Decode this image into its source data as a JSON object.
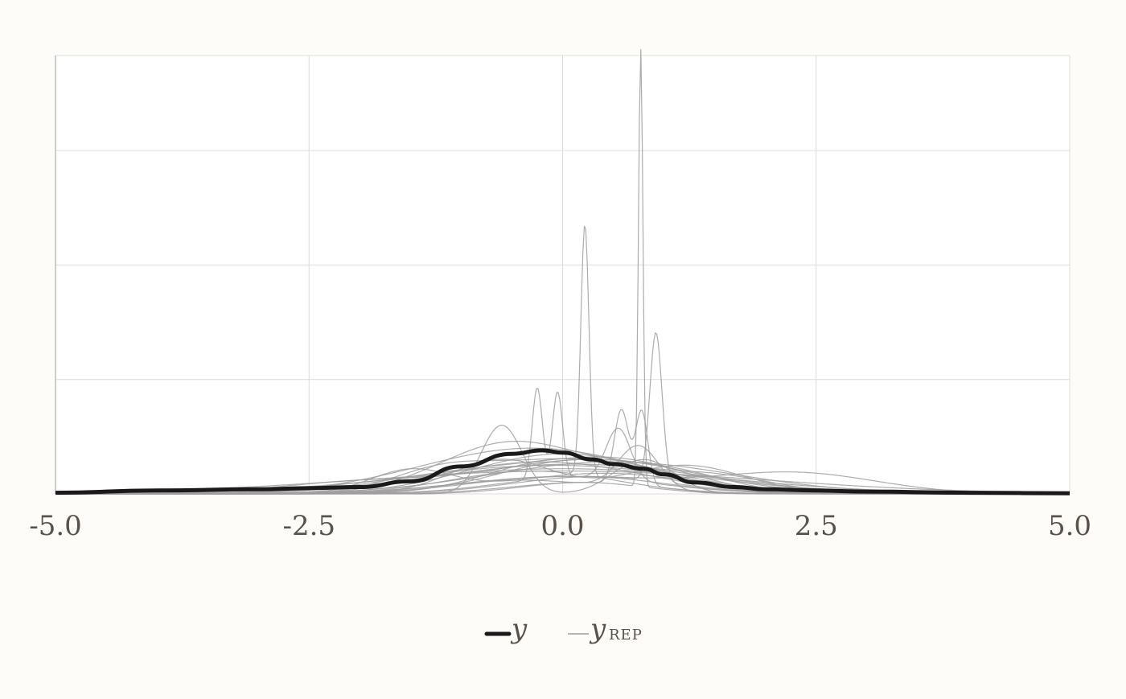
{
  "chart_data": {
    "type": "line",
    "title": "",
    "xlabel": "",
    "ylabel": "",
    "xlim": [
      -5,
      5
    ],
    "ylim": [
      0,
      3.83
    ],
    "x_ticks": [
      -5,
      -2.5,
      0,
      2.5,
      5
    ],
    "x_tick_labels": [
      "-5.0",
      "-2.5",
      "0.0",
      "2.5",
      "5.0"
    ],
    "y_gridlines": [
      0,
      1,
      2,
      3,
      3.83
    ],
    "grid": true,
    "legend_position": "bottom-center",
    "legend": [
      {
        "label": "y",
        "style": "thick-dark"
      },
      {
        "label": "y",
        "sub": "REP",
        "style": "thin-gray"
      }
    ],
    "colors": {
      "observed": "#1a1a1a",
      "replicates": "#9e9e9e",
      "background": "#fdfcf8",
      "grid": "#dcdcdc"
    },
    "observed": {
      "name": "y",
      "x": [
        -5,
        -4,
        -3,
        -2.5,
        -2,
        -1.5,
        -1,
        -0.5,
        -0.2,
        0,
        0.3,
        0.5,
        0.8,
        1,
        1.3,
        1.7,
        2,
        2.5,
        3,
        4,
        5
      ],
      "y": [
        0.01,
        0.03,
        0.04,
        0.05,
        0.06,
        0.11,
        0.24,
        0.35,
        0.38,
        0.36,
        0.3,
        0.26,
        0.22,
        0.17,
        0.1,
        0.06,
        0.04,
        0.03,
        0.02,
        0.01,
        0.005
      ]
    },
    "replicates": [
      {
        "peaks": [
          [
            0,
            0.35,
            0.9
          ]
        ]
      },
      {
        "peaks": [
          [
            -0.3,
            0.4,
            1.1
          ]
        ]
      },
      {
        "peaks": [
          [
            0.2,
            0.3,
            0.8
          ]
        ]
      },
      {
        "peaks": [
          [
            -0.5,
            0.45,
            0.7
          ],
          [
            1.0,
            0.2,
            0.6
          ]
        ]
      },
      {
        "peaks": [
          [
            -1.2,
            0.18,
            0.5
          ],
          [
            0.1,
            0.3,
            0.8
          ]
        ]
      },
      {
        "peaks": [
          [
            0.5,
            0.28,
            1.2
          ]
        ]
      },
      {
        "peaks": [
          [
            -0.1,
            0.25,
            1.4
          ]
        ]
      },
      {
        "peaks": [
          [
            -0.8,
            0.2,
            0.9
          ],
          [
            0.6,
            0.25,
            0.7
          ]
        ]
      },
      {
        "peaks": [
          [
            0,
            0.22,
            1.6
          ]
        ]
      },
      {
        "peaks": [
          [
            -2.0,
            0.1,
            0.8
          ],
          [
            0.3,
            0.3,
            1.0
          ]
        ]
      },
      {
        "peaks": [
          [
            2.3,
            0.18,
            0.8
          ],
          [
            0,
            0.15,
            1.0
          ]
        ]
      },
      {
        "peaks": [
          [
            -1.5,
            0.2,
            0.4
          ],
          [
            0.4,
            0.18,
            0.9
          ]
        ]
      },
      {
        "peaks": [
          [
            1.2,
            0.25,
            0.6
          ],
          [
            -0.6,
            0.3,
            0.5
          ]
        ]
      },
      {
        "peaks": [
          [
            -0.6,
            0.6,
            0.2
          ],
          [
            0.8,
            0.3,
            0.3
          ]
        ]
      },
      {
        "peaks": [
          [
            0,
            0.2,
            2.0
          ]
        ]
      },
      {
        "peaks": [
          [
            -0.25,
            0.8,
            0.05
          ],
          [
            -0.05,
            0.75,
            0.05
          ],
          [
            0.2,
            0.15,
            0.8
          ]
        ]
      },
      {
        "peaks": [
          [
            0.22,
            2.2,
            0.04
          ],
          [
            -0.3,
            0.2,
            0.8
          ]
        ]
      },
      {
        "peaks": [
          [
            0.77,
            3.83,
            0.022
          ],
          [
            0.2,
            0.1,
            0.6
          ]
        ]
      },
      {
        "peaks": [
          [
            0.92,
            1.3,
            0.06
          ],
          [
            0.3,
            0.15,
            0.8
          ]
        ]
      },
      {
        "peaks": [
          [
            0.58,
            0.65,
            0.07
          ],
          [
            0.78,
            0.65,
            0.06
          ],
          [
            0.2,
            0.1,
            0.7
          ]
        ]
      },
      {
        "peaks": [
          [
            0.55,
            0.45,
            0.12
          ],
          [
            0,
            0.15,
            0.9
          ]
        ]
      },
      {
        "peaks": [
          [
            0.75,
            0.38,
            0.2
          ],
          [
            -0.4,
            0.12,
            0.8
          ]
        ]
      },
      {
        "peaks": [
          [
            0,
            0.3,
            0.7
          ],
          [
            1.5,
            0.15,
            0.6
          ]
        ]
      },
      {
        "peaks": [
          [
            -0.2,
            0.28,
            1.0
          ]
        ]
      },
      {
        "peaks": [
          [
            0.1,
            0.26,
            1.3
          ]
        ]
      }
    ]
  }
}
